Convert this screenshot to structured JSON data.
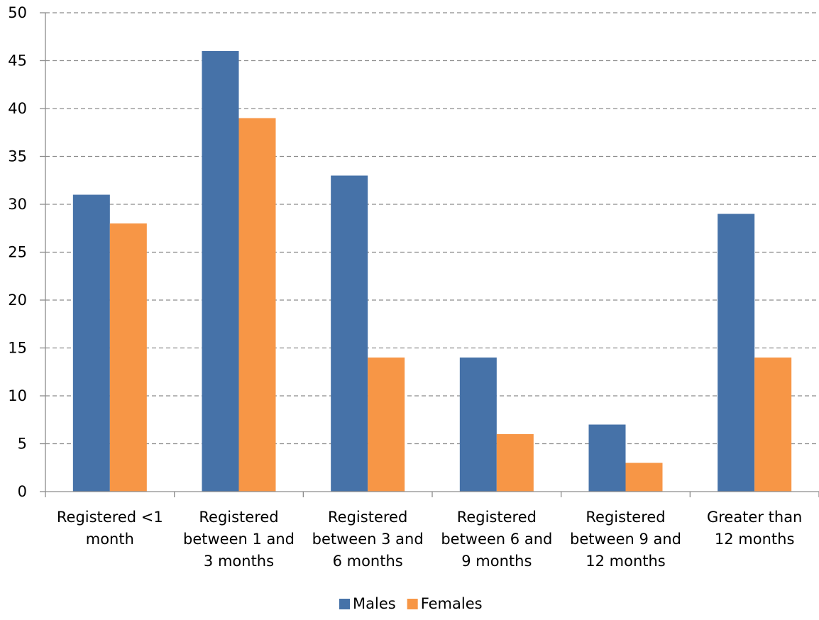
{
  "chart_data": {
    "type": "bar",
    "categories": [
      [
        "Registered <1",
        "month"
      ],
      [
        "Registered",
        "between 1 and",
        "3 months"
      ],
      [
        "Registered",
        "between 3 and",
        "6 months"
      ],
      [
        "Registered",
        "between 6 and",
        "9 months"
      ],
      [
        "Registered",
        "between 9 and",
        "12 months"
      ],
      [
        "Greater than",
        "12 months"
      ]
    ],
    "series": [
      {
        "name": "Males",
        "color": "#4672A8",
        "values": [
          31,
          46,
          33,
          14,
          7,
          29
        ]
      },
      {
        "name": "Females",
        "color": "#F79646",
        "values": [
          28,
          39,
          14,
          6,
          3,
          14
        ]
      }
    ],
    "ylim": [
      0,
      50
    ],
    "yticks": [
      0,
      5,
      10,
      15,
      20,
      25,
      30,
      35,
      40,
      45,
      50
    ],
    "title": "",
    "xlabel": "",
    "ylabel": "",
    "grid": true,
    "legend_position": "bottom-center"
  }
}
